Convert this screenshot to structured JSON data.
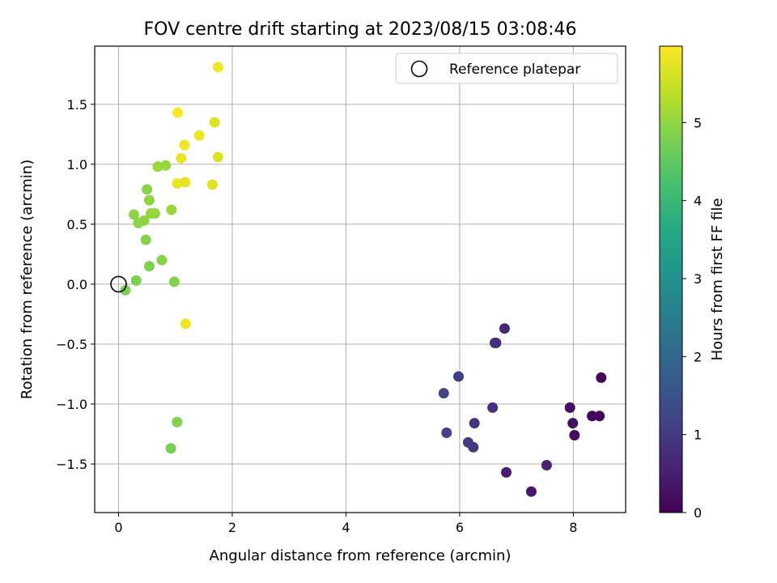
{
  "chart_data": {
    "type": "scatter",
    "title": "FOV centre drift starting at 2023/08/15 03:08:46",
    "xlabel": "Angular distance from reference (arcmin)",
    "ylabel": "Rotation from reference (arcmin)",
    "xlim": [
      -0.42,
      8.92
    ],
    "ylim": [
      -1.905,
      1.985
    ],
    "xticks": [
      0,
      2,
      4,
      6,
      8
    ],
    "yticks": [
      -1.5,
      -1.0,
      -0.5,
      0.0,
      0.5,
      1.0,
      1.5
    ],
    "xtick_labels": [
      "0",
      "2",
      "4",
      "6",
      "8"
    ],
    "ytick_labels": [
      "−1.5",
      "−1.0",
      "−0.5",
      "0.0",
      "0.5",
      "1.0",
      "1.5"
    ],
    "grid": true,
    "legend": {
      "placement": "top-right",
      "entries": [
        "Reference platepar"
      ]
    },
    "colorbar": {
      "label": "Hours from first FF file",
      "range": [
        0,
        5.98
      ],
      "ticks": [
        0,
        1,
        2,
        3,
        4,
        5
      ],
      "tick_labels": [
        "0",
        "1",
        "2",
        "3",
        "4",
        "5"
      ],
      "colormap": "viridis"
    },
    "reference_point": {
      "x": 0.0,
      "y": 0.0,
      "name": "Reference platepar"
    },
    "points": [
      {
        "x": 8.49,
        "y": -0.78,
        "t": 0.05
      },
      {
        "x": 8.46,
        "y": -1.1,
        "t": 0.1
      },
      {
        "x": 8.33,
        "y": -1.1,
        "t": 0.12
      },
      {
        "x": 8.02,
        "y": -1.26,
        "t": 0.18
      },
      {
        "x": 7.99,
        "y": -1.16,
        "t": 0.22
      },
      {
        "x": 7.94,
        "y": -1.03,
        "t": 0.28
      },
      {
        "x": 7.26,
        "y": -1.73,
        "t": 0.4
      },
      {
        "x": 6.82,
        "y": -1.57,
        "t": 0.48
      },
      {
        "x": 7.53,
        "y": -1.51,
        "t": 0.55
      },
      {
        "x": 6.79,
        "y": -0.37,
        "t": 0.68
      },
      {
        "x": 6.64,
        "y": -0.49,
        "t": 0.75
      },
      {
        "x": 6.62,
        "y": -0.49,
        "t": 0.78
      },
      {
        "x": 6.58,
        "y": -1.03,
        "t": 0.83
      },
      {
        "x": 6.26,
        "y": -1.16,
        "t": 0.9
      },
      {
        "x": 6.24,
        "y": -1.36,
        "t": 0.95
      },
      {
        "x": 6.15,
        "y": -1.32,
        "t": 1.0
      },
      {
        "x": 5.98,
        "y": -0.77,
        "t": 1.08
      },
      {
        "x": 5.77,
        "y": -1.24,
        "t": 1.15
      },
      {
        "x": 5.72,
        "y": -0.91,
        "t": 1.22
      },
      {
        "x": 0.92,
        "y": -1.37,
        "t": 4.75
      },
      {
        "x": 1.03,
        "y": -1.15,
        "t": 4.82
      },
      {
        "x": 0.12,
        "y": -0.05,
        "t": 4.78
      },
      {
        "x": 0.31,
        "y": 0.03,
        "t": 4.8
      },
      {
        "x": 0.98,
        "y": 0.02,
        "t": 4.85
      },
      {
        "x": 0.54,
        "y": 0.15,
        "t": 4.8
      },
      {
        "x": 0.76,
        "y": 0.2,
        "t": 4.9
      },
      {
        "x": 0.48,
        "y": 0.37,
        "t": 4.88
      },
      {
        "x": 0.35,
        "y": 0.51,
        "t": 4.92
      },
      {
        "x": 0.45,
        "y": 0.53,
        "t": 4.95
      },
      {
        "x": 0.27,
        "y": 0.58,
        "t": 4.95
      },
      {
        "x": 0.57,
        "y": 0.59,
        "t": 5.0
      },
      {
        "x": 0.64,
        "y": 0.59,
        "t": 5.02
      },
      {
        "x": 0.93,
        "y": 0.62,
        "t": 5.05
      },
      {
        "x": 0.54,
        "y": 0.7,
        "t": 4.98
      },
      {
        "x": 0.5,
        "y": 0.79,
        "t": 4.9
      },
      {
        "x": 0.69,
        "y": 0.98,
        "t": 5.08
      },
      {
        "x": 0.83,
        "y": 0.99,
        "t": 5.02
      },
      {
        "x": 1.18,
        "y": -0.33,
        "t": 5.85
      },
      {
        "x": 1.03,
        "y": 0.84,
        "t": 5.8
      },
      {
        "x": 1.17,
        "y": 0.85,
        "t": 5.75
      },
      {
        "x": 1.65,
        "y": 0.83,
        "t": 5.7
      },
      {
        "x": 1.1,
        "y": 1.05,
        "t": 5.78
      },
      {
        "x": 1.75,
        "y": 1.06,
        "t": 5.65
      },
      {
        "x": 1.16,
        "y": 1.16,
        "t": 5.85
      },
      {
        "x": 1.42,
        "y": 1.24,
        "t": 5.8
      },
      {
        "x": 1.69,
        "y": 1.35,
        "t": 5.72
      },
      {
        "x": 1.04,
        "y": 1.43,
        "t": 5.95
      },
      {
        "x": 1.75,
        "y": 1.81,
        "t": 5.88
      }
    ]
  }
}
